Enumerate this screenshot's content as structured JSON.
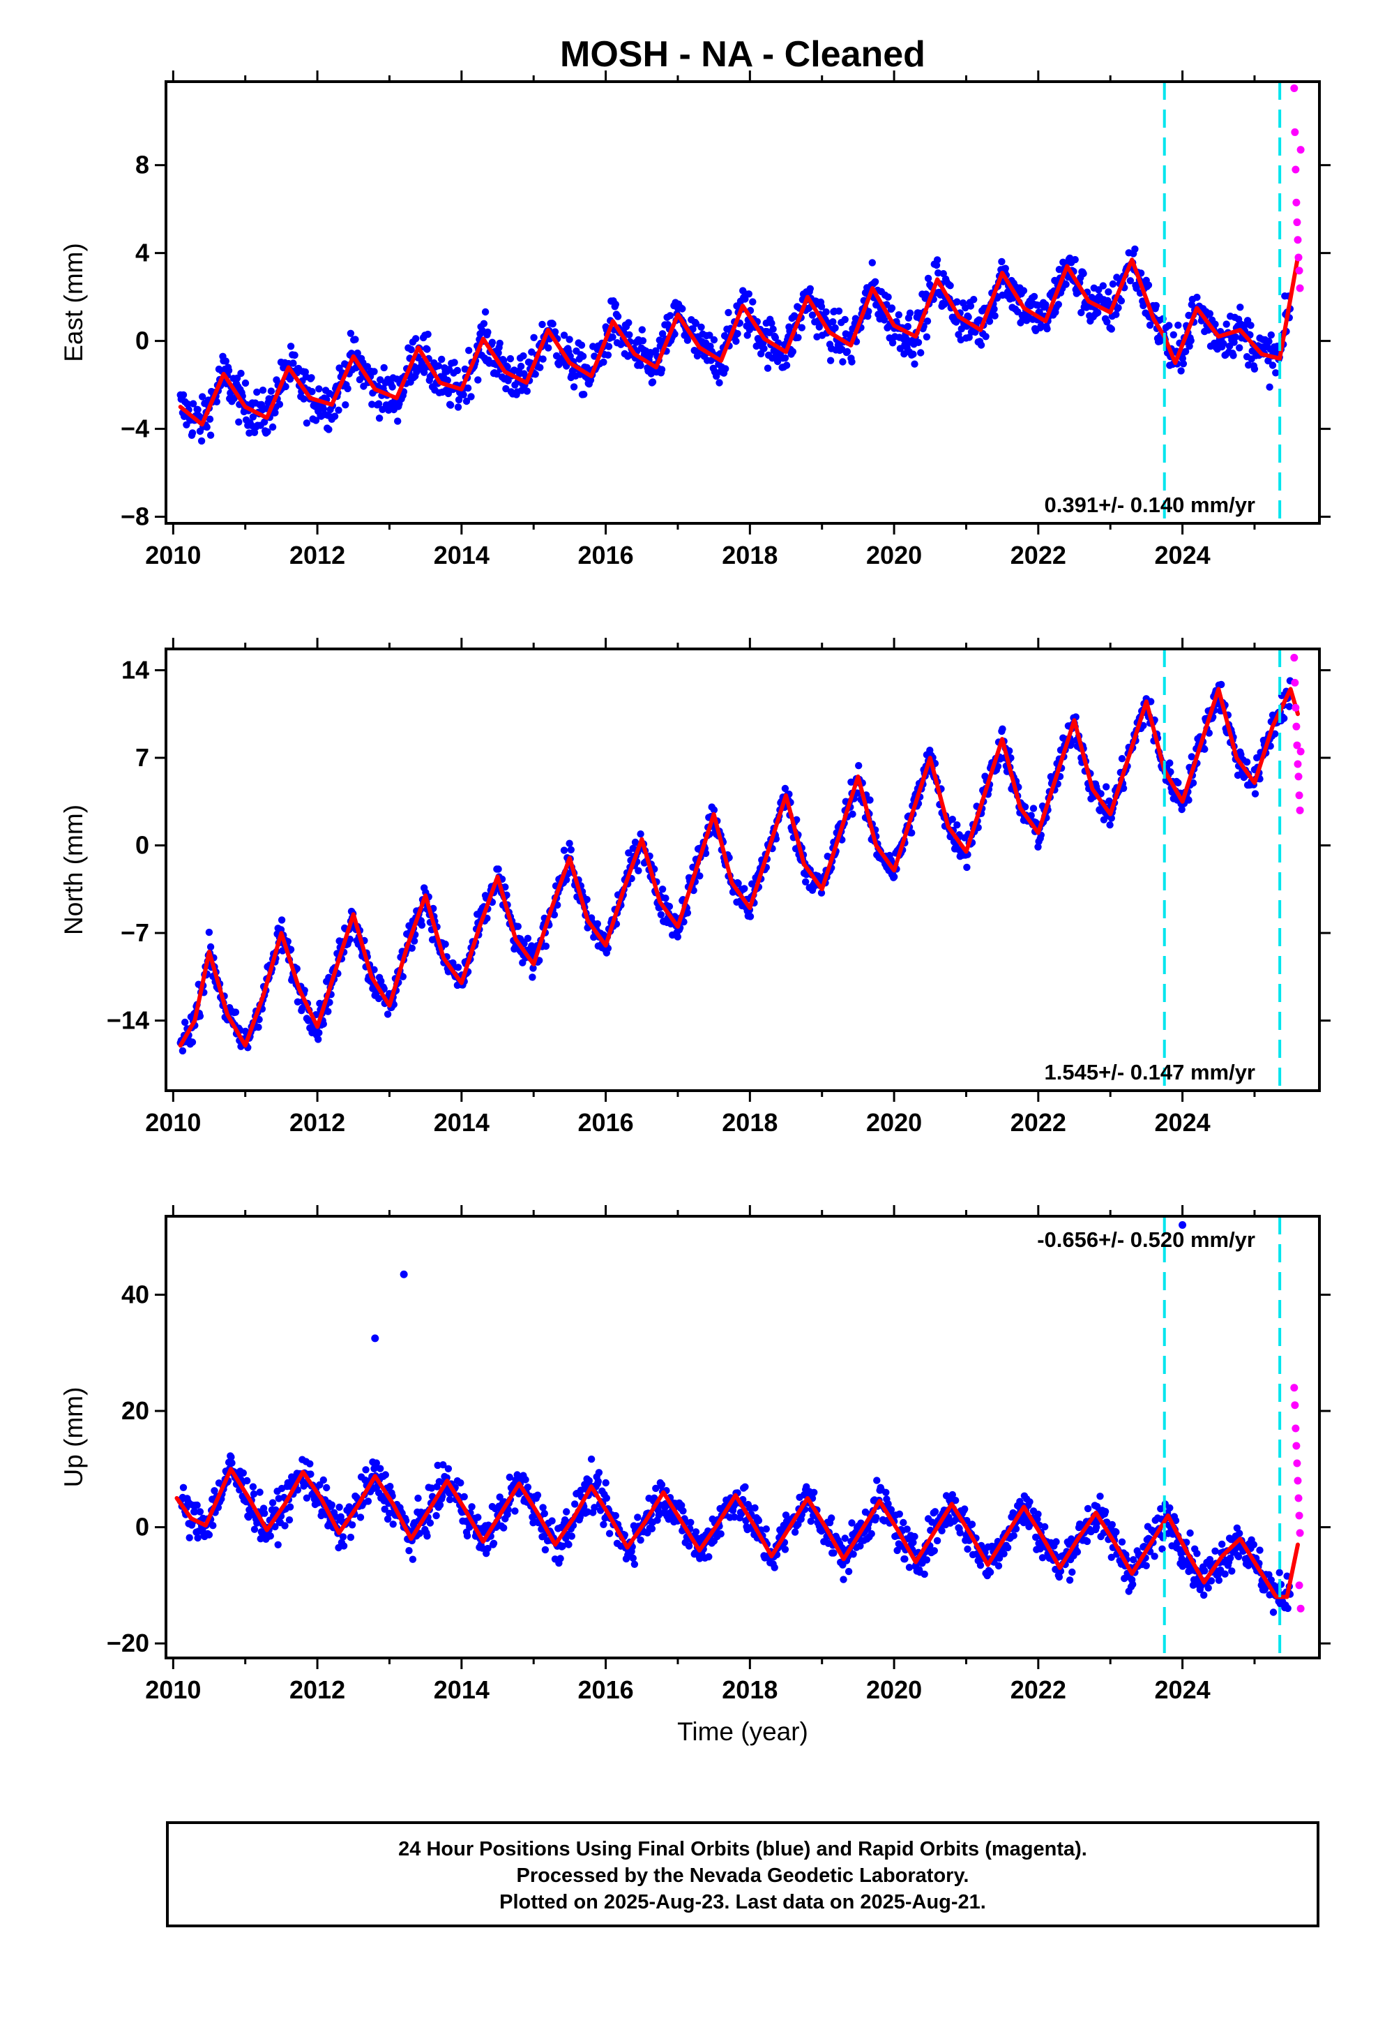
{
  "title": "MOSH  - NA - Cleaned",
  "colors": {
    "final_orbits": "#0000ff",
    "rapid_orbits": "#ff00ff",
    "fit": "#ff0000",
    "events": "#00e5ee"
  },
  "footer": {
    "line1": "24 Hour Positions Using Final Orbits (blue) and Rapid Orbits (magenta).",
    "line2": "Processed by the Nevada Geodetic Laboratory.",
    "line3": "Plotted on 2025-Aug-23. Last data on 2025-Aug-21."
  },
  "chart_data": [
    {
      "type": "scatter",
      "panel": "east",
      "title": "MOSH  - NA - Cleaned",
      "xlabel": "",
      "ylabel": "East (mm)",
      "xlim": [
        2009.9,
        2025.9
      ],
      "ylim": [
        -8.3,
        11.8
      ],
      "xticks": [
        2010,
        2012,
        2014,
        2016,
        2018,
        2020,
        2022,
        2024
      ],
      "yticks": [
        -8,
        -4,
        0,
        4,
        8
      ],
      "velocity_label": "0.391+/- 0.140 mm/yr",
      "event_lines": [
        2023.75,
        2025.35
      ],
      "fit": {
        "x": [
          2010.1,
          2010.4,
          2010.7,
          2011.0,
          2011.3,
          2011.6,
          2011.9,
          2012.2,
          2012.5,
          2012.8,
          2013.1,
          2013.4,
          2013.7,
          2014.0,
          2014.3,
          2014.6,
          2014.9,
          2015.2,
          2015.5,
          2015.8,
          2016.1,
          2016.4,
          2016.7,
          2017.0,
          2017.3,
          2017.6,
          2017.9,
          2018.2,
          2018.5,
          2018.8,
          2019.1,
          2019.4,
          2019.7,
          2020.0,
          2020.3,
          2020.6,
          2020.9,
          2021.2,
          2021.5,
          2021.8,
          2022.1,
          2022.4,
          2022.7,
          2023.0,
          2023.3,
          2023.6,
          2023.75,
          2023.9,
          2024.2,
          2024.5,
          2024.8,
          2025.1,
          2025.35,
          2025.6
        ],
        "y": [
          -3.0,
          -3.8,
          -1.5,
          -3.0,
          -3.5,
          -1.2,
          -2.6,
          -2.9,
          -0.7,
          -2.2,
          -2.6,
          -0.3,
          -1.9,
          -2.2,
          0.1,
          -1.4,
          -1.9,
          0.5,
          -1.0,
          -1.6,
          0.9,
          -0.6,
          -1.2,
          1.2,
          -0.3,
          -0.9,
          1.6,
          0.1,
          -0.5,
          2.0,
          0.4,
          -0.2,
          2.4,
          0.7,
          0.2,
          2.8,
          1.1,
          0.5,
          3.1,
          1.5,
          0.9,
          3.4,
          1.8,
          1.3,
          3.7,
          1.0,
          0.2,
          -1.0,
          1.5,
          0.2,
          0.5,
          -0.6,
          -0.8,
          3.8
        ]
      },
      "rapid": {
        "x": [
          2025.55,
          2025.56,
          2025.57,
          2025.58,
          2025.59,
          2025.6,
          2025.61,
          2025.62,
          2025.63,
          2025.64
        ],
        "y": [
          11.5,
          9.5,
          7.8,
          6.3,
          5.4,
          4.6,
          3.8,
          3.2,
          2.4,
          8.7
        ]
      }
    },
    {
      "type": "scatter",
      "panel": "north",
      "xlabel": "",
      "ylabel": "North (mm)",
      "xlim": [
        2009.9,
        2025.9
      ],
      "ylim": [
        -19.6,
        15.7
      ],
      "xticks": [
        2010,
        2012,
        2014,
        2016,
        2018,
        2020,
        2022,
        2024
      ],
      "yticks": [
        -14,
        -7,
        0,
        7,
        14
      ],
      "velocity_label": "1.545+/- 0.147 mm/yr",
      "event_lines": [
        2023.75,
        2025.35
      ],
      "fit": {
        "x": [
          2010.1,
          2010.3,
          2010.5,
          2010.75,
          2011.0,
          2011.25,
          2011.5,
          2011.75,
          2012.0,
          2012.25,
          2012.5,
          2012.75,
          2013.0,
          2013.25,
          2013.5,
          2013.75,
          2014.0,
          2014.25,
          2014.5,
          2014.75,
          2015.0,
          2015.25,
          2015.5,
          2015.75,
          2016.0,
          2016.25,
          2016.5,
          2016.75,
          2017.0,
          2017.25,
          2017.5,
          2017.75,
          2018.0,
          2018.25,
          2018.5,
          2018.75,
          2019.0,
          2019.25,
          2019.5,
          2019.75,
          2020.0,
          2020.25,
          2020.5,
          2020.75,
          2021.0,
          2021.25,
          2021.5,
          2021.75,
          2022.0,
          2022.25,
          2022.5,
          2022.75,
          2023.0,
          2023.25,
          2023.5,
          2023.75,
          2024.0,
          2024.25,
          2024.5,
          2024.75,
          2025.0,
          2025.25,
          2025.5,
          2025.6
        ],
        "y": [
          -16.0,
          -14.0,
          -8.5,
          -13.5,
          -16.0,
          -12.0,
          -7.0,
          -11.5,
          -14.5,
          -10.0,
          -5.5,
          -10.5,
          -12.8,
          -8.0,
          -4.0,
          -9.0,
          -11.0,
          -6.5,
          -2.5,
          -7.5,
          -9.5,
          -5.0,
          -1.0,
          -6.0,
          -8.0,
          -3.5,
          0.5,
          -4.5,
          -6.5,
          -2.0,
          2.5,
          -3.0,
          -5.0,
          -0.5,
          4.0,
          -1.5,
          -3.5,
          1.0,
          5.5,
          0.0,
          -2.0,
          2.5,
          7.0,
          1.5,
          -0.5,
          4.0,
          8.5,
          3.0,
          1.0,
          5.5,
          10.0,
          4.5,
          2.5,
          7.0,
          11.5,
          6.0,
          3.5,
          8.0,
          12.5,
          7.0,
          5.0,
          9.5,
          12.5,
          10.5
        ]
      },
      "rapid": {
        "x": [
          2025.55,
          2025.56,
          2025.57,
          2025.58,
          2025.59,
          2025.6,
          2025.61,
          2025.62,
          2025.63,
          2025.64
        ],
        "y": [
          15.0,
          13.0,
          11.0,
          9.5,
          8.0,
          6.5,
          5.5,
          4.0,
          2.8,
          7.5
        ]
      }
    },
    {
      "type": "scatter",
      "panel": "up",
      "xlabel": "Time (year)",
      "ylabel": "Up (mm)",
      "xlim": [
        2009.9,
        2025.9
      ],
      "ylim": [
        -22.5,
        53.5
      ],
      "xticks": [
        2010,
        2012,
        2014,
        2016,
        2018,
        2020,
        2022,
        2024
      ],
      "yticks": [
        -20,
        0,
        20,
        40
      ],
      "velocity_label": "-0.656+/- 0.520 mm/yr",
      "event_lines": [
        2023.75,
        2025.35
      ],
      "fit": {
        "x": [
          2010.05,
          2010.25,
          2010.45,
          2010.8,
          2011.05,
          2011.3,
          2011.55,
          2011.8,
          2012.05,
          2012.3,
          2012.55,
          2012.8,
          2013.05,
          2013.3,
          2013.55,
          2013.8,
          2014.05,
          2014.3,
          2014.55,
          2014.8,
          2015.05,
          2015.3,
          2015.55,
          2015.8,
          2016.05,
          2016.3,
          2016.55,
          2016.8,
          2017.05,
          2017.3,
          2017.55,
          2017.8,
          2018.05,
          2018.3,
          2018.55,
          2018.8,
          2019.05,
          2019.3,
          2019.55,
          2019.8,
          2020.05,
          2020.3,
          2020.55,
          2020.8,
          2021.05,
          2021.3,
          2021.55,
          2021.8,
          2022.05,
          2022.3,
          2022.55,
          2022.8,
          2023.05,
          2023.3,
          2023.55,
          2023.8,
          2024.05,
          2024.3,
          2024.55,
          2024.8,
          2025.05,
          2025.3,
          2025.45,
          2025.6
        ],
        "y": [
          5.0,
          1.5,
          0.3,
          10.0,
          5.0,
          -0.5,
          4.0,
          9.5,
          5.0,
          -1.0,
          3.5,
          8.8,
          4.0,
          -2.0,
          3.0,
          8.0,
          3.0,
          -2.5,
          2.5,
          7.5,
          2.5,
          -3.0,
          1.5,
          7.0,
          2.0,
          -3.5,
          1.0,
          6.0,
          1.0,
          -4.0,
          0.5,
          5.5,
          0.5,
          -5.0,
          0.0,
          5.0,
          0.0,
          -5.5,
          -0.5,
          4.5,
          -0.5,
          -6.0,
          -1.0,
          4.0,
          -1.0,
          -6.5,
          -1.5,
          3.5,
          -1.5,
          -7.0,
          -2.0,
          2.5,
          -2.5,
          -8.0,
          -3.0,
          2.0,
          -4.0,
          -9.5,
          -5.0,
          -2.0,
          -7.0,
          -12.0,
          -12.0,
          -3.0
        ]
      },
      "rapid": {
        "x": [
          2025.55,
          2025.56,
          2025.57,
          2025.58,
          2025.59,
          2025.6,
          2025.61,
          2025.62,
          2025.63,
          2025.64,
          2025.62
        ],
        "y": [
          24.0,
          21.0,
          17.0,
          14.0,
          11.0,
          8.0,
          5.0,
          2.0,
          -1.0,
          -14.0,
          -10.0
        ]
      },
      "outliers": {
        "x": [
          2013.2,
          2012.8,
          2024.0
        ],
        "y": [
          43.5,
          32.5,
          52.0
        ]
      }
    }
  ]
}
